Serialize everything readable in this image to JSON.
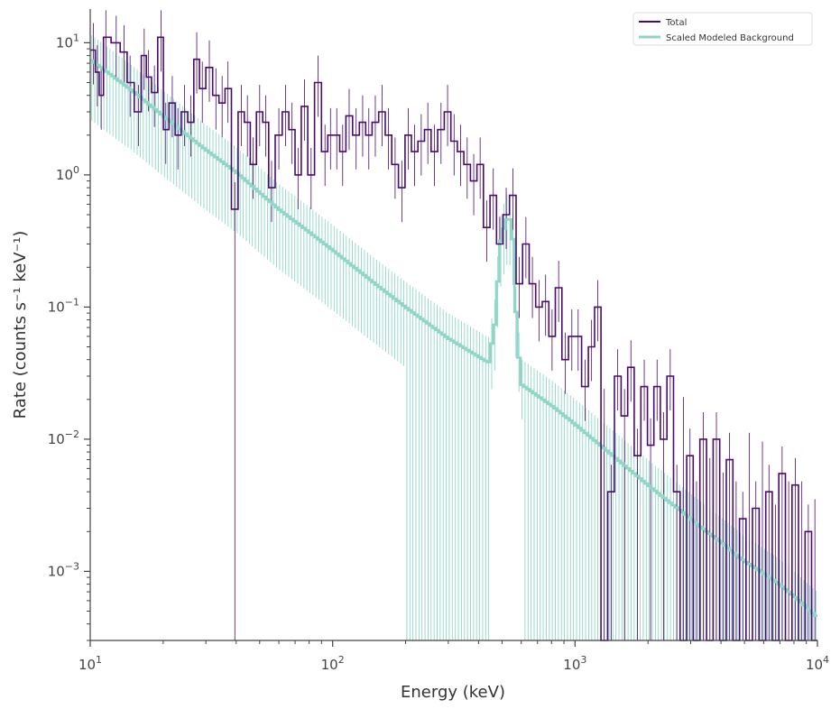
{
  "chart_data": {
    "type": "line",
    "title": "",
    "xlabel": "Energy (keV)",
    "ylabel": "Rate (counts s⁻¹ keV⁻¹)",
    "xscale": "log",
    "yscale": "log",
    "xlim": [
      10,
      10000
    ],
    "ylim": [
      0.0003,
      18
    ],
    "x_tick_labels": [
      {
        "value": 10,
        "base": "10",
        "exp": "1"
      },
      {
        "value": 100,
        "base": "10",
        "exp": "2"
      },
      {
        "value": 1000,
        "base": "10",
        "exp": "3"
      },
      {
        "value": 10000,
        "base": "10",
        "exp": "4"
      }
    ],
    "y_tick_labels": [
      {
        "value": 10,
        "base": "10",
        "exp": "1"
      },
      {
        "value": 1,
        "base": "10",
        "exp": "0"
      },
      {
        "value": 0.1,
        "base": "10",
        "exp": "−1"
      },
      {
        "value": 0.01,
        "base": "10",
        "exp": "−2"
      },
      {
        "value": 0.001,
        "base": "10",
        "exp": "−3"
      }
    ],
    "grid": false,
    "legend_position": "top-right",
    "series": [
      {
        "name": "Total",
        "color": "#4b0a6e",
        "style": "step-with-errorbars",
        "points": [
          [
            10.3,
            8.8
          ],
          [
            10.7,
            6.0
          ],
          [
            11.1,
            4.0
          ],
          [
            11.6,
            11.0
          ],
          [
            12.8,
            10.0
          ],
          [
            13.8,
            8.5
          ],
          [
            14.6,
            5.0
          ],
          [
            15.8,
            3.0
          ],
          [
            16.7,
            8.0
          ],
          [
            17.4,
            5.5
          ],
          [
            18.4,
            4.2
          ],
          [
            19.6,
            11.0
          ],
          [
            20.5,
            2.2
          ],
          [
            21.8,
            3.5
          ],
          [
            23.0,
            2.0
          ],
          [
            24.5,
            3.0
          ],
          [
            26.0,
            2.5
          ],
          [
            27.5,
            7.5
          ],
          [
            29.0,
            4.5
          ],
          [
            31.0,
            6.5
          ],
          [
            33.0,
            4.0
          ],
          [
            35.0,
            3.5
          ],
          [
            37.0,
            4.5
          ],
          [
            39.5,
            0.55
          ],
          [
            42.0,
            3.0
          ],
          [
            44.5,
            2.5
          ],
          [
            47.0,
            1.2
          ],
          [
            50.0,
            3.0
          ],
          [
            53.0,
            2.5
          ],
          [
            56.0,
            0.8
          ],
          [
            60.0,
            2.0
          ],
          [
            64.0,
            3.0
          ],
          [
            68.0,
            2.2
          ],
          [
            72.0,
            1.0
          ],
          [
            76.5,
            3.3
          ],
          [
            81.5,
            1.0
          ],
          [
            87.0,
            5.0
          ],
          [
            93.0,
            1.5
          ],
          [
            98.0,
            2.0
          ],
          [
            104.0,
            2.0
          ],
          [
            110.0,
            1.5
          ],
          [
            117.0,
            2.8
          ],
          [
            125.0,
            2.0
          ],
          [
            133.0,
            2.5
          ],
          [
            141.0,
            2.0
          ],
          [
            150.0,
            2.5
          ],
          [
            160.0,
            3.0
          ],
          [
            170.0,
            2.0
          ],
          [
            181.0,
            1.2
          ],
          [
            193.0,
            0.8
          ],
          [
            205.0,
            2.0
          ],
          [
            218.0,
            1.5
          ],
          [
            232.0,
            1.8
          ],
          [
            247.0,
            2.2
          ],
          [
            263.0,
            1.5
          ],
          [
            280.0,
            2.2
          ],
          [
            298.0,
            3.0
          ],
          [
            317.0,
            1.8
          ],
          [
            337.0,
            1.5
          ],
          [
            359.0,
            1.2
          ],
          [
            382.0,
            0.9
          ],
          [
            406.0,
            1.2
          ],
          [
            432.0,
            0.4
          ],
          [
            460.0,
            0.7
          ],
          [
            489.0,
            0.3
          ],
          [
            520.0,
            0.5
          ],
          [
            554.0,
            0.7
          ],
          [
            589.0,
            0.15
          ],
          [
            627.0,
            0.3
          ],
          [
            667.0,
            0.15
          ],
          [
            710.0,
            0.1
          ],
          [
            756.0,
            0.11
          ],
          [
            804.0,
            0.06
          ],
          [
            856.0,
            0.14
          ],
          [
            911.0,
            0.04
          ],
          [
            970.0,
            0.06
          ],
          [
            1030.0,
            0.06
          ],
          [
            1100.0,
            0.025
          ],
          [
            1170.0,
            0.05
          ],
          [
            1240.0,
            0.1
          ],
          [
            1320.0,
            0.015
          ],
          [
            1410.0,
            0.004
          ],
          [
            1500.0,
            0.03
          ],
          [
            1600.0,
            0.015
          ],
          [
            1700.0,
            0.035
          ],
          [
            1810.0,
            0.0075
          ],
          [
            1930.0,
            0.025
          ],
          [
            2050.0,
            0.009
          ],
          [
            2180.0,
            0.025
          ],
          [
            2320.0,
            0.01
          ],
          [
            2470.0,
            0.03
          ],
          [
            2630.0,
            0.004
          ],
          [
            2800.0,
            0.013
          ],
          [
            2980.0,
            0.0075
          ],
          [
            3170.0,
            0.003
          ],
          [
            3380.0,
            0.01
          ],
          [
            3600.0,
            0.0045
          ],
          [
            3830.0,
            0.01
          ],
          [
            4080.0,
            0.0035
          ],
          [
            4340.0,
            0.007
          ],
          [
            4620.0,
            0.003
          ],
          [
            4920.0,
            0.0025
          ],
          [
            5230.0,
            0.007
          ],
          [
            5570.0,
            0.003
          ],
          [
            5930.0,
            0.006
          ],
          [
            6310.0,
            0.004
          ],
          [
            6720.0,
            0.002
          ],
          [
            7150.0,
            0.0055
          ],
          [
            7610.0,
            0.003
          ],
          [
            8100.0,
            0.0045
          ],
          [
            8620.0,
            0.003
          ],
          [
            9170.0,
            0.002
          ],
          [
            9760.0,
            0.0022
          ]
        ]
      },
      {
        "name": "Scaled Modeled Background",
        "color": "#8fd6c7",
        "style": "step-with-errorbars",
        "description_points": "power-law continuum with a line feature near 511 keV",
        "points": [
          [
            10.0,
            7.5
          ],
          [
            15.0,
            4.3
          ],
          [
            20.0,
            2.8
          ],
          [
            30.0,
            1.55
          ],
          [
            40.0,
            1.05
          ],
          [
            60.0,
            0.55
          ],
          [
            80.0,
            0.37
          ],
          [
            100.0,
            0.27
          ],
          [
            150.0,
            0.15
          ],
          [
            200.0,
            0.1
          ],
          [
            300.0,
            0.058
          ],
          [
            440.0,
            0.038
          ],
          [
            470.0,
            0.08
          ],
          [
            490.0,
            0.3
          ],
          [
            520.0,
            0.46
          ],
          [
            550.0,
            0.46
          ],
          [
            575.0,
            0.065
          ],
          [
            600.0,
            0.026
          ],
          [
            800.0,
            0.018
          ],
          [
            1000.0,
            0.013
          ],
          [
            1500.0,
            0.007
          ],
          [
            2000.0,
            0.0045
          ],
          [
            3000.0,
            0.0025
          ],
          [
            5000.0,
            0.0012
          ],
          [
            7000.0,
            0.0008
          ],
          [
            10000.0,
            0.00045
          ]
        ]
      }
    ]
  }
}
